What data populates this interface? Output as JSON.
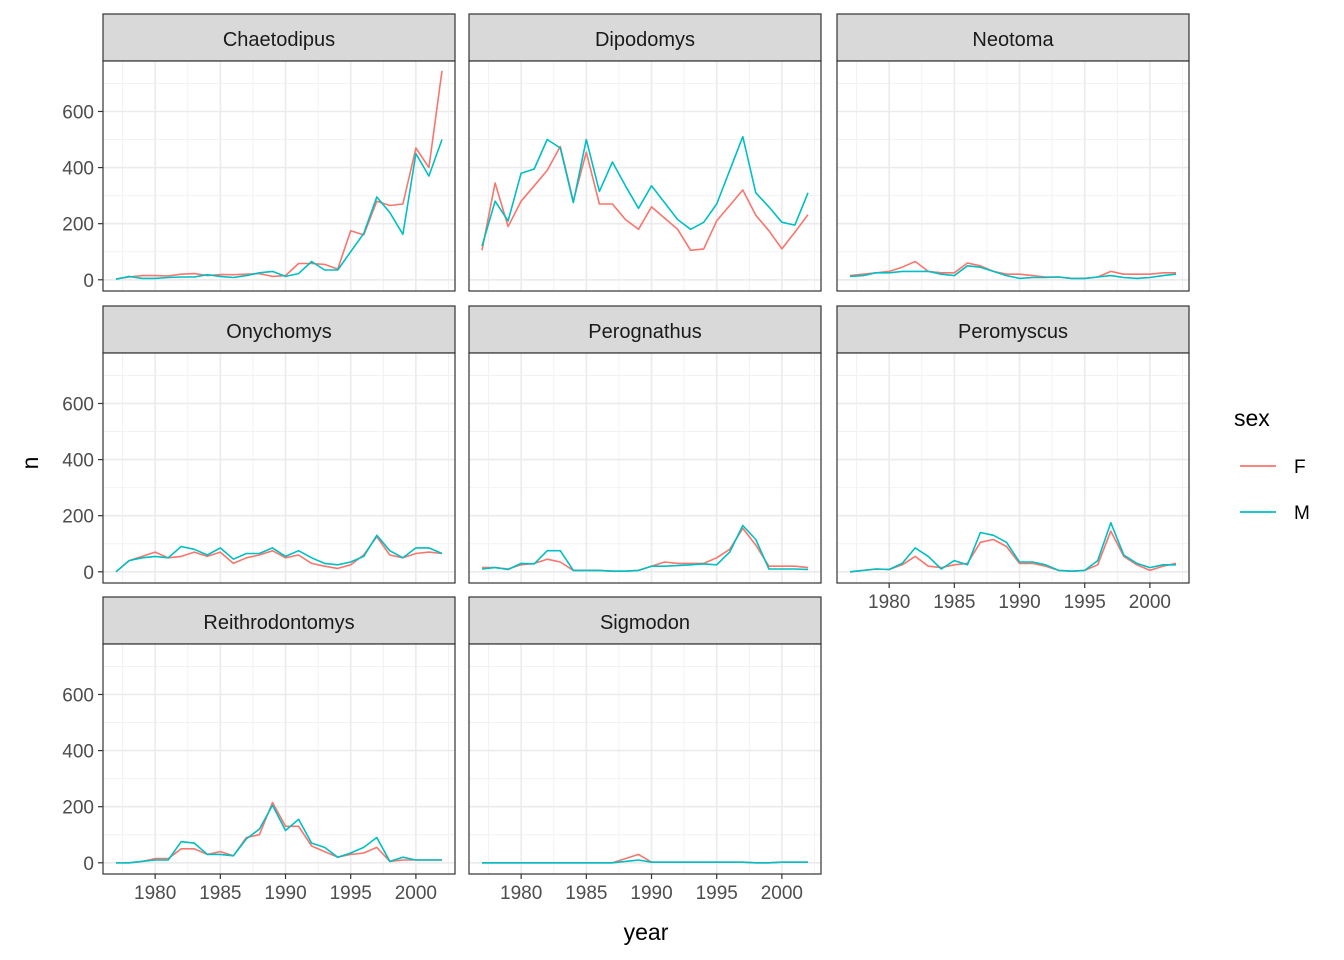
{
  "chart_data": {
    "type": "line",
    "layout": "faceted 3x3 grid, shared axes",
    "xlabel": "year",
    "ylabel": "n",
    "xlim": [
      1976,
      2003
    ],
    "ylim": [
      -40,
      780
    ],
    "xticks": [
      1980,
      1985,
      1990,
      1995,
      2000
    ],
    "yticks": [
      0,
      200,
      400,
      600
    ],
    "grid": true,
    "legend": {
      "title": "sex",
      "position": "right",
      "entries": [
        {
          "name": "F",
          "color": "#F8766D"
        },
        {
          "name": "M",
          "color": "#00BFC4"
        }
      ]
    },
    "x": [
      1977,
      1978,
      1979,
      1980,
      1981,
      1982,
      1983,
      1984,
      1985,
      1986,
      1987,
      1988,
      1989,
      1990,
      1991,
      1992,
      1993,
      1994,
      1995,
      1996,
      1997,
      1998,
      1999,
      2000,
      2001,
      2002
    ],
    "facets": [
      {
        "title": "Chaetodipus",
        "series": [
          {
            "name": "F",
            "values": [
              3,
              10,
              15,
              15,
              14,
              20,
              22,
              15,
              19,
              18,
              20,
              22,
              12,
              15,
              58,
              58,
              55,
              38,
              175,
              160,
              280,
              265,
              270,
              470,
              400,
              745
            ]
          },
          {
            "name": "M",
            "values": [
              2,
              12,
              5,
              5,
              8,
              10,
              10,
              18,
              12,
              8,
              15,
              25,
              30,
              12,
              22,
              65,
              35,
              35,
              100,
              165,
              295,
              240,
              162,
              450,
              370,
              500
            ]
          }
        ]
      },
      {
        "title": "Dipodomys",
        "series": [
          {
            "name": "F",
            "values": [
              105,
              345,
              190,
              280,
              335,
              390,
              475,
              280,
              455,
              270,
              270,
              215,
              180,
              260,
              220,
              180,
              105,
              110,
              210,
              265,
              320,
              230,
              175,
              110,
              170,
              232
            ]
          },
          {
            "name": "M",
            "values": [
              120,
              280,
              210,
              380,
              395,
              500,
              470,
              275,
              500,
              315,
              420,
              335,
              255,
              335,
              275,
              215,
              180,
              205,
              270,
              390,
              510,
              310,
              260,
              205,
              195,
              310
            ]
          }
        ]
      },
      {
        "title": "Neotoma",
        "series": [
          {
            "name": "F",
            "values": [
              15,
              20,
              25,
              30,
              45,
              65,
              30,
              25,
              25,
              60,
              50,
              30,
              20,
              20,
              15,
              10,
              10,
              5,
              5,
              10,
              30,
              20,
              20,
              20,
              25,
              25
            ]
          },
          {
            "name": "M",
            "values": [
              12,
              15,
              25,
              25,
              30,
              30,
              30,
              20,
              15,
              50,
              45,
              30,
              15,
              5,
              8,
              8,
              10,
              5,
              5,
              10,
              15,
              8,
              5,
              8,
              15,
              20
            ]
          }
        ]
      },
      {
        "title": "Onychomys",
        "series": [
          {
            "name": "F",
            "values": [
              0,
              40,
              55,
              70,
              50,
              55,
              70,
              55,
              70,
              30,
              50,
              60,
              75,
              50,
              60,
              30,
              20,
              12,
              25,
              60,
              125,
              60,
              50,
              65,
              70,
              65
            ]
          },
          {
            "name": "M",
            "values": [
              0,
              40,
              50,
              55,
              50,
              90,
              80,
              60,
              85,
              45,
              65,
              65,
              85,
              55,
              75,
              50,
              30,
              25,
              35,
              55,
              130,
              75,
              50,
              85,
              85,
              65
            ]
          }
        ]
      },
      {
        "title": "Perognathus",
        "series": [
          {
            "name": "F",
            "values": [
              15,
              15,
              10,
              25,
              30,
              45,
              35,
              5,
              5,
              5,
              2,
              2,
              5,
              20,
              35,
              30,
              30,
              30,
              50,
              80,
              155,
              95,
              20,
              20,
              20,
              15
            ]
          },
          {
            "name": "M",
            "values": [
              10,
              15,
              8,
              30,
              28,
              75,
              75,
              5,
              5,
              5,
              2,
              2,
              5,
              20,
              20,
              22,
              25,
              28,
              25,
              70,
              165,
              115,
              10,
              10,
              10,
              8
            ]
          }
        ]
      },
      {
        "title": "Peromyscus",
        "series": [
          {
            "name": "F",
            "values": [
              0,
              5,
              10,
              8,
              25,
              55,
              20,
              15,
              25,
              30,
              105,
              115,
              90,
              30,
              30,
              20,
              5,
              2,
              5,
              25,
              145,
              55,
              25,
              5,
              20,
              30
            ]
          },
          {
            "name": "M",
            "values": [
              0,
              5,
              10,
              8,
              30,
              85,
              55,
              10,
              40,
              25,
              140,
              130,
              105,
              35,
              35,
              25,
              5,
              2,
              5,
              40,
              175,
              60,
              30,
              15,
              25,
              25
            ]
          }
        ]
      },
      {
        "title": "Reithrodontomys",
        "series": [
          {
            "name": "F",
            "values": [
              0,
              0,
              5,
              15,
              15,
              50,
              50,
              30,
              40,
              25,
              90,
              100,
              215,
              130,
              130,
              60,
              40,
              20,
              30,
              35,
              55,
              5,
              10,
              10,
              10,
              10
            ]
          },
          {
            "name": "M",
            "values": [
              0,
              0,
              5,
              10,
              10,
              75,
              70,
              30,
              30,
              25,
              85,
              120,
              205,
              115,
              155,
              70,
              55,
              20,
              35,
              55,
              90,
              5,
              20,
              10,
              10,
              10
            ]
          }
        ]
      },
      {
        "title": "Sigmodon",
        "series": [
          {
            "name": "F",
            "values": [
              0,
              0,
              0,
              0,
              0,
              0,
              0,
              0,
              0,
              0,
              0,
              15,
              30,
              2,
              2,
              2,
              2,
              2,
              2,
              2,
              2,
              0,
              0,
              2,
              2,
              2
            ]
          },
          {
            "name": "M",
            "values": [
              0,
              0,
              0,
              0,
              0,
              0,
              0,
              0,
              0,
              0,
              0,
              5,
              10,
              2,
              2,
              2,
              2,
              2,
              2,
              2,
              2,
              0,
              0,
              2,
              2,
              2
            ]
          }
        ]
      }
    ]
  }
}
